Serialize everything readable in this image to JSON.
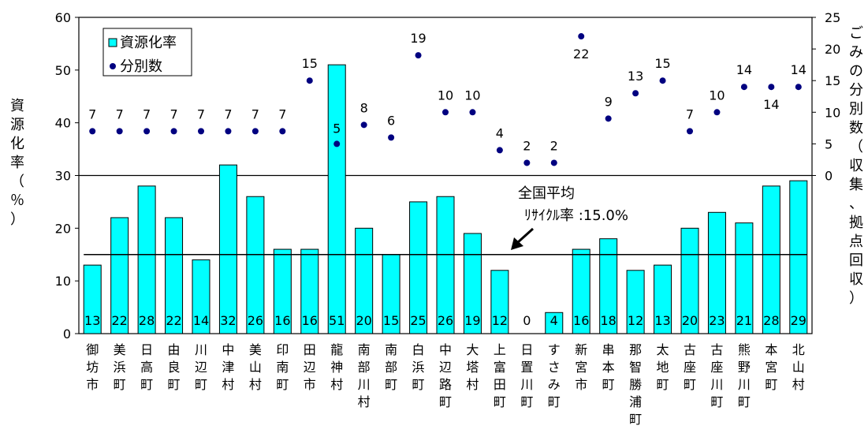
{
  "chart_data": {
    "type": "bar",
    "categories": [
      "御坊市",
      "美浜町",
      "日高町",
      "由良町",
      "川辺町",
      "中津村",
      "美山村",
      "印南町",
      "田辺市",
      "龍神村",
      "南部川村",
      "南部町",
      "白浜町",
      "中辺路町",
      "大塔村",
      "上富田町",
      "日置川町",
      "すさみ町",
      "新宮市",
      "串本町",
      "那智勝浦町",
      "太地町",
      "古座町",
      "古座川町",
      "熊野川町",
      "本宮町",
      "北山村"
    ],
    "series": [
      {
        "name": "資源化率",
        "type": "bar",
        "axis": "left",
        "color": "#00ffff",
        "values": [
          13,
          22,
          28,
          22,
          14,
          32,
          26,
          16,
          16,
          51,
          20,
          15,
          25,
          26,
          19,
          12,
          0,
          4,
          16,
          18,
          12,
          13,
          20,
          23,
          21,
          28,
          29
        ]
      },
      {
        "name": "分別数",
        "type": "scatter",
        "axis": "right",
        "color": "#000080",
        "values": [
          7,
          7,
          7,
          7,
          7,
          7,
          7,
          7,
          15,
          5,
          8,
          6,
          19,
          10,
          10,
          4,
          2,
          2,
          22,
          9,
          13,
          15,
          7,
          10,
          14,
          14,
          14
        ]
      }
    ],
    "bar_labels": [
      "13",
      "22",
      "28",
      "22",
      "14",
      "32",
      "26",
      "16",
      "16",
      "51",
      "20",
      "15",
      "25",
      "26",
      "19",
      "12",
      "0",
      "4",
      "16",
      "18",
      "12",
      "13",
      "20",
      "23",
      "21",
      "28",
      "29"
    ],
    "point_labels": [
      "7",
      "7",
      "7",
      "7",
      "7",
      "7",
      "7",
      "7",
      "15",
      "5",
      "8",
      "6",
      "19",
      "10",
      "10",
      "4",
      "2",
      "2",
      "22",
      "9",
      "13",
      "15",
      "7",
      "10",
      "14",
      "14",
      "14"
    ],
    "ylabel_left": "資源化率（％）",
    "ylabel_right": "ごみの分別数（収集、拠点回収）",
    "ylim_left": [
      0,
      60
    ],
    "ylim_right": [
      0,
      25
    ],
    "yticks_left": [
      "0",
      "10",
      "20",
      "30",
      "40",
      "50",
      "60"
    ],
    "yticks_right": [
      "0",
      "5",
      "10",
      "15",
      "20",
      "25"
    ],
    "reference_line": {
      "value": 15,
      "label_line1": "全国平均",
      "label_line2": "ﾘｻｲｸﾙ率 :15.0%"
    },
    "legend": {
      "placement": "top-left",
      "entries": [
        {
          "label": "資源化率"
        },
        {
          "label": "分別数"
        }
      ]
    }
  }
}
